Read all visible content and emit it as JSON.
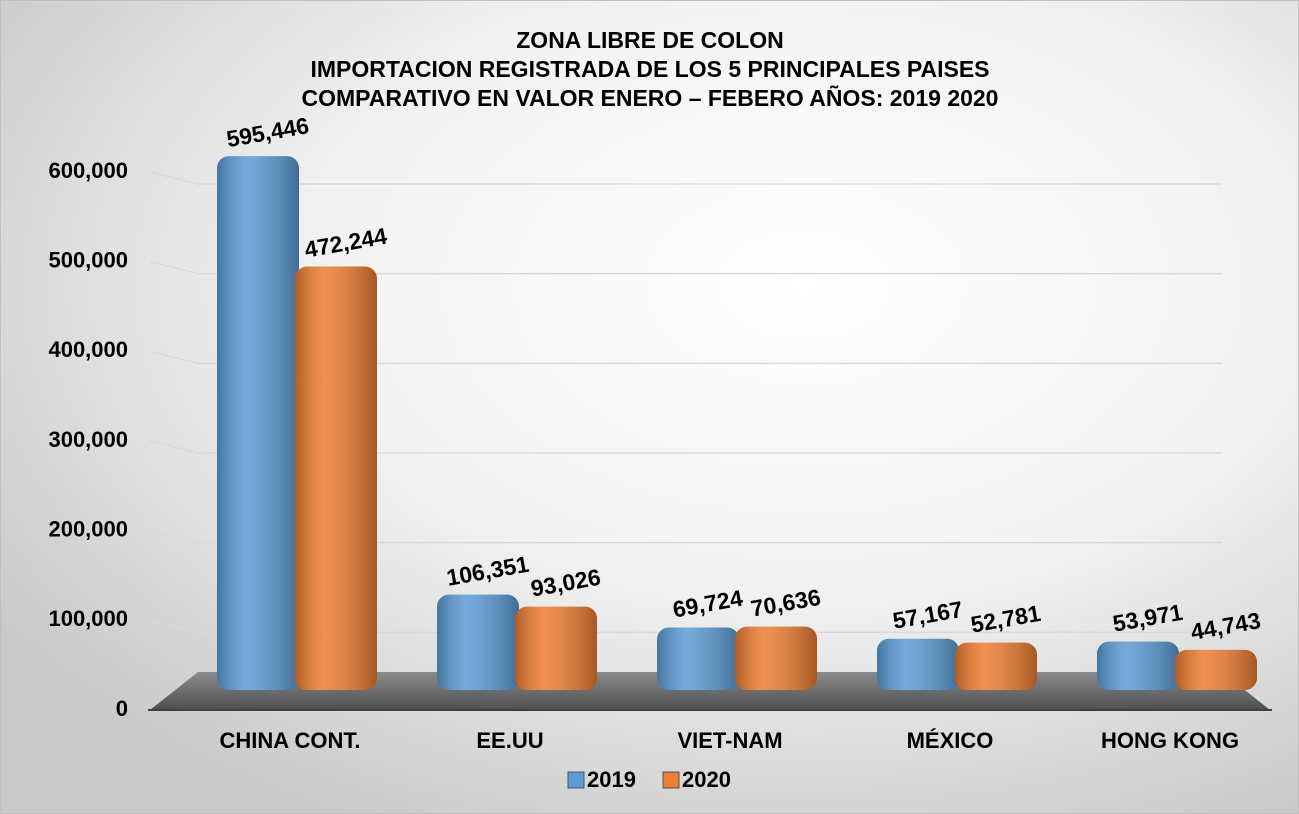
{
  "chart_data": {
    "type": "bar",
    "title": [
      "ZONA LIBRE DE COLON",
      "IMPORTACION REGISTRADA DE LOS 5 PRINCIPALES PAISES",
      "COMPARATIVO EN VALOR  ENERO – FEBERO AÑOS: 2019 2020"
    ],
    "categories": [
      "CHINA CONT.",
      "EE.UU",
      "VIET-NAM",
      "MÉXICO",
      "HONG KONG"
    ],
    "series": [
      {
        "name": "2019",
        "color": "#5b9bd5",
        "values": [
          595446,
          106351,
          69724,
          57167,
          53971
        ],
        "value_labels": [
          "595,446",
          "106,351",
          "69,724",
          "57,167",
          "53,971"
        ]
      },
      {
        "name": "2020",
        "color": "#ed7d31",
        "values": [
          472244,
          93026,
          70636,
          52781,
          44743
        ],
        "value_labels": [
          "472,244",
          "93,026",
          "70,636",
          "52,781",
          "44,743"
        ]
      }
    ],
    "ylim": [
      0,
      600000
    ],
    "yticks": [
      0,
      {
        "value": 100000,
        "label": "100,000"
      },
      {
        "value": 200000,
        "label": "200,000"
      },
      {
        "value": 300000,
        "label": "300,000"
      },
      {
        "value": 400000,
        "label": "400,000"
      },
      {
        "value": 500000,
        "label": "500,000"
      },
      {
        "value": 600000,
        "label": "600,000"
      }
    ],
    "grid": true,
    "legend": "bottom"
  }
}
